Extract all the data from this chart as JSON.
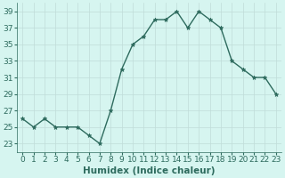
{
  "title": "",
  "xlabel": "Humidex (Indice chaleur)",
  "ylabel": "",
  "x": [
    0,
    1,
    2,
    3,
    4,
    5,
    6,
    7,
    8,
    9,
    10,
    11,
    12,
    13,
    14,
    15,
    16,
    17,
    18,
    19,
    20,
    21,
    22,
    23
  ],
  "y": [
    26,
    25,
    26,
    25,
    25,
    25,
    24,
    23,
    27,
    32,
    35,
    36,
    38,
    38,
    39,
    37,
    39,
    38,
    37,
    33,
    32,
    31,
    31,
    29
  ],
  "ylim_min": 22,
  "ylim_max": 40,
  "yticks": [
    23,
    25,
    27,
    29,
    31,
    33,
    35,
    37,
    39
  ],
  "line_color": "#2e6b5e",
  "marker": "*",
  "marker_size": 3.5,
  "bg_color": "#d6f5f0",
  "grid_color": "#c0dcd8",
  "tick_label_fontsize": 6.5,
  "xlabel_fontsize": 7.5,
  "line_width": 1.0
}
